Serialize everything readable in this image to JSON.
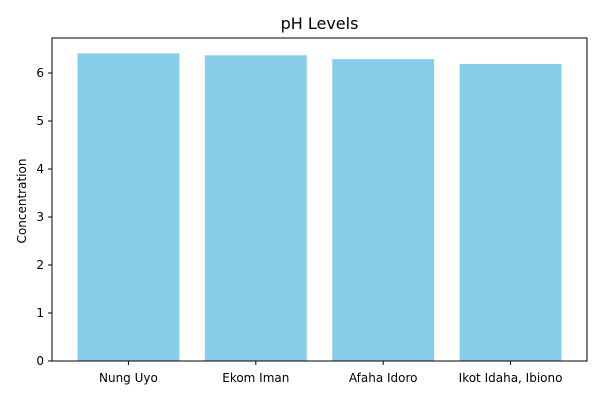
{
  "chart_data": {
    "type": "bar",
    "title": "pH Levels",
    "xlabel": "",
    "ylabel": "Concentration",
    "categories": [
      "Nung Uyo",
      "Ekom Iman",
      "Afaha Idoro",
      "Ikot Idaha, Ibiono"
    ],
    "values": [
      6.41,
      6.37,
      6.29,
      6.19
    ],
    "ylim": [
      0,
      6.73
    ],
    "yticks": [
      0,
      1,
      2,
      3,
      4,
      5,
      6
    ],
    "grid": false,
    "legend": "none",
    "bar_color": "#87ceeb"
  }
}
